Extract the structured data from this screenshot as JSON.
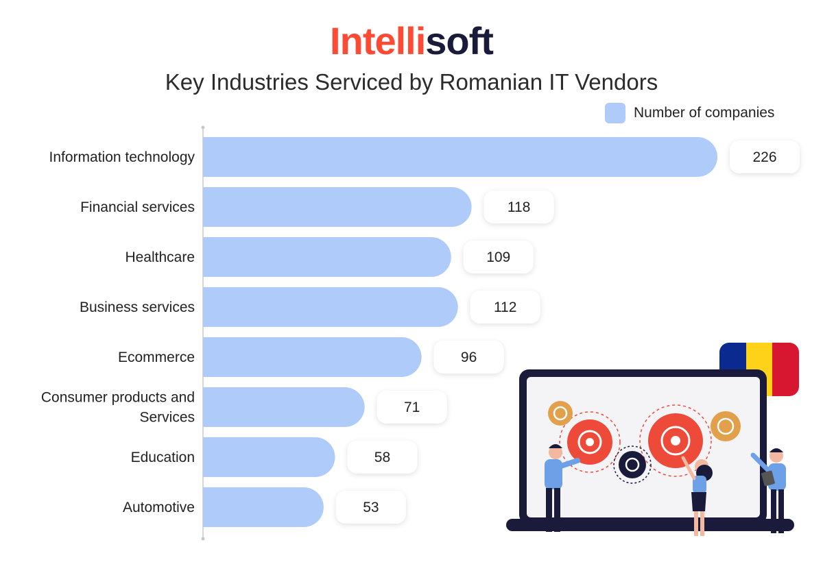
{
  "brand": {
    "part1": "Intelli",
    "part2": "soft"
  },
  "chart_data": {
    "type": "bar",
    "orientation": "horizontal",
    "title": "Key Industries Serviced by Romanian IT Vendors",
    "legend": {
      "position": "top-right",
      "entries": [
        "Number of companies"
      ]
    },
    "categories": [
      [
        "Information technology"
      ],
      [
        "Financial services"
      ],
      [
        "Healthcare"
      ],
      [
        "Business services"
      ],
      [
        "Ecommerce"
      ],
      [
        "Consumer products and",
        "Services"
      ],
      [
        "Education"
      ],
      [
        "Automotive"
      ]
    ],
    "series": [
      {
        "name": "Number of companies",
        "values": [
          226,
          118,
          109,
          112,
          96,
          71,
          58,
          53
        ]
      }
    ],
    "xlim": [
      0,
      226
    ],
    "grid": false,
    "colors": {
      "bar": "#aecbf9",
      "axis": "#c8c8c8",
      "label_bg": "#ffffff"
    }
  },
  "illustration": {
    "flag_colors": [
      "#0b2a8f",
      "#ffd21a",
      "#d7162f"
    ],
    "gear_colors": [
      "#ee4a3a",
      "#e2a04a",
      "#1a1a3a"
    ]
  }
}
